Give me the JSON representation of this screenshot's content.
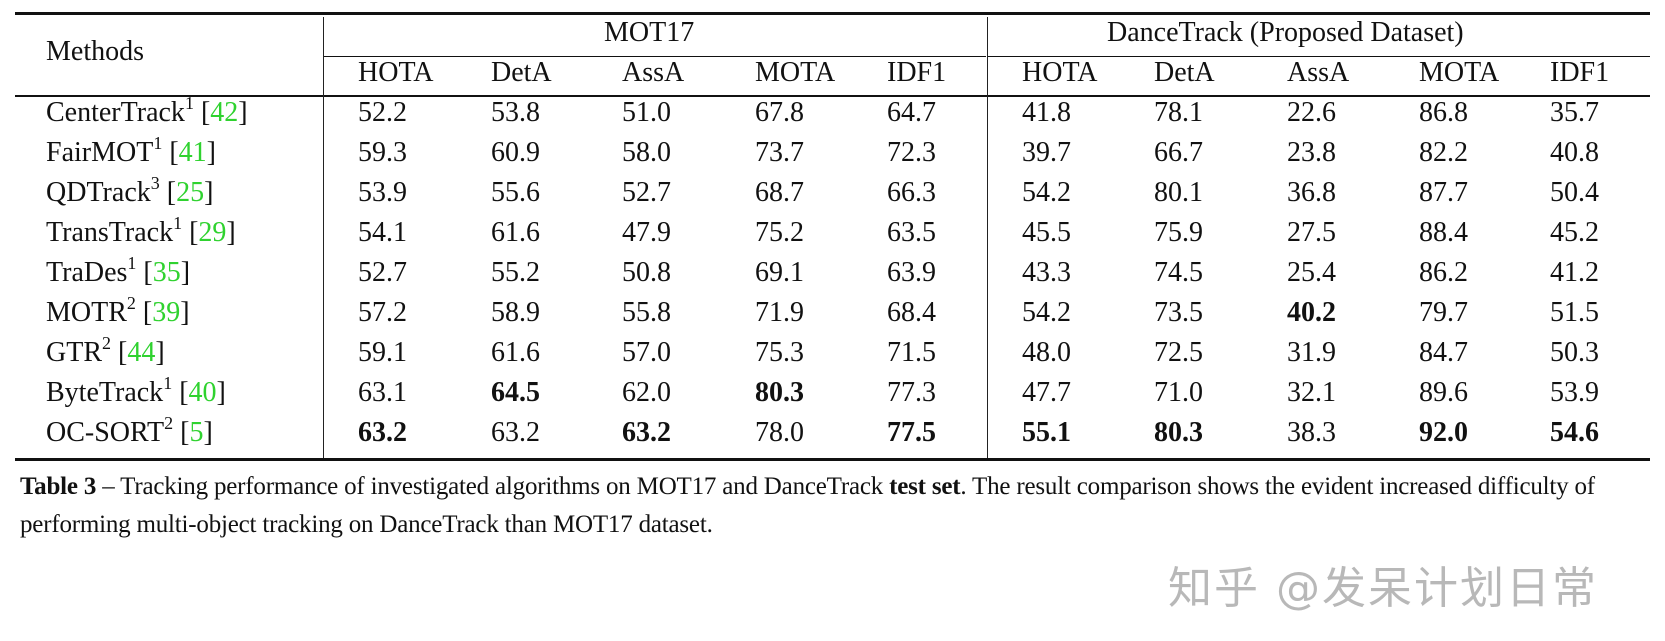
{
  "table": {
    "methods_header": "Methods",
    "groups": [
      {
        "label": "MOT17",
        "columns": [
          "HOTA",
          "DetA",
          "AssA",
          "MOTA",
          "IDF1"
        ]
      },
      {
        "label": "DanceTrack (Proposed Dataset)",
        "columns": [
          "HOTA",
          "DetA",
          "AssA",
          "MOTA",
          "IDF1"
        ]
      }
    ],
    "rows": [
      {
        "method": "CenterTrack",
        "sup": "1",
        "ref": "42",
        "values": [
          "52.2",
          "53.8",
          "51.0",
          "67.8",
          "64.7",
          "41.8",
          "78.1",
          "22.6",
          "86.8",
          "35.7"
        ],
        "bold": []
      },
      {
        "method": "FairMOT",
        "sup": "1",
        "ref": "41",
        "values": [
          "59.3",
          "60.9",
          "58.0",
          "73.7",
          "72.3",
          "39.7",
          "66.7",
          "23.8",
          "82.2",
          "40.8"
        ],
        "bold": []
      },
      {
        "method": "QDTrack",
        "sup": "3",
        "ref": "25",
        "values": [
          "53.9",
          "55.6",
          "52.7",
          "68.7",
          "66.3",
          "54.2",
          "80.1",
          "36.8",
          "87.7",
          "50.4"
        ],
        "bold": []
      },
      {
        "method": "TransTrack",
        "sup": "1",
        "ref": "29",
        "values": [
          "54.1",
          "61.6",
          "47.9",
          "75.2",
          "63.5",
          "45.5",
          "75.9",
          "27.5",
          "88.4",
          "45.2"
        ],
        "bold": []
      },
      {
        "method": "TraDes",
        "sup": "1",
        "ref": "35",
        "values": [
          "52.7",
          "55.2",
          "50.8",
          "69.1",
          "63.9",
          "43.3",
          "74.5",
          "25.4",
          "86.2",
          "41.2"
        ],
        "bold": []
      },
      {
        "method": "MOTR",
        "sup": "2",
        "ref": "39",
        "values": [
          "57.2",
          "58.9",
          "55.8",
          "71.9",
          "68.4",
          "54.2",
          "73.5",
          "40.2",
          "79.7",
          "51.5"
        ],
        "bold": [
          7
        ]
      },
      {
        "method": "GTR",
        "sup": "2",
        "ref": "44",
        "values": [
          "59.1",
          "61.6",
          "57.0",
          "75.3",
          "71.5",
          "48.0",
          "72.5",
          "31.9",
          "84.7",
          "50.3"
        ],
        "bold": []
      },
      {
        "method": "ByteTrack",
        "sup": "1",
        "ref": "40",
        "values": [
          "63.1",
          "64.5",
          "62.0",
          "80.3",
          "77.3",
          "47.7",
          "71.0",
          "32.1",
          "89.6",
          "53.9"
        ],
        "bold": [
          1,
          3
        ]
      },
      {
        "method": "OC-SORT",
        "sup": "2",
        "ref": "5",
        "values": [
          "63.2",
          "63.2",
          "63.2",
          "78.0",
          "77.5",
          "55.1",
          "80.3",
          "38.3",
          "92.0",
          "54.6"
        ],
        "bold": [
          0,
          2,
          4,
          5,
          6,
          8,
          9
        ]
      }
    ]
  },
  "caption": {
    "label": "Table 3",
    "dash": " – ",
    "text_before": "Tracking performance of investigated algorithms on MOT17 and DanceTrack ",
    "bold_phrase": "test set",
    "text_after": ". The result comparison shows the evident increased difficulty of performing multi-object tracking on DanceTrack than MOT17 dataset."
  },
  "watermark": "知乎 @发呆计划日常",
  "colors": {
    "reference_link": "#2fd22f",
    "watermark": "#b8b8b8",
    "text": "#111111"
  }
}
